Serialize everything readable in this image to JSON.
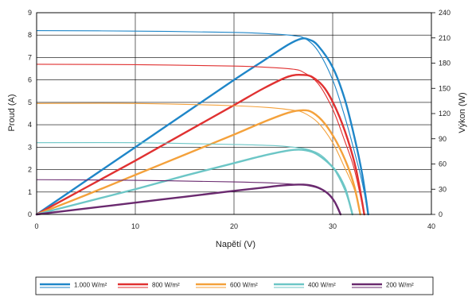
{
  "chart_data": {
    "type": "line",
    "title": "",
    "xlabel": "Napětí (V)",
    "ylabel_left": "Proud (A)",
    "ylabel_right": "Výkon (W)",
    "xlim": [
      0,
      40
    ],
    "ylim_left": [
      0,
      9
    ],
    "ylim_right": [
      0,
      240
    ],
    "x_ticks": [
      0,
      10,
      20,
      30,
      40
    ],
    "y_ticks_left": [
      0,
      1,
      2,
      3,
      4,
      5,
      6,
      7,
      8,
      9
    ],
    "y_ticks_right": [
      0,
      30,
      60,
      90,
      120,
      150,
      180,
      210,
      240
    ],
    "grid": true,
    "legend_position": "bottom",
    "series": [
      {
        "name": "1.000 W/m²",
        "color": "#1f86c8",
        "current_curve": [
          [
            0,
            8.2
          ],
          [
            10,
            8.18
          ],
          [
            20,
            8.12
          ],
          [
            24,
            8.05
          ],
          [
            26,
            7.98
          ],
          [
            27.2,
            7.85
          ],
          [
            28.5,
            7.3
          ],
          [
            30,
            6.0
          ],
          [
            31.2,
            4.4
          ],
          [
            32.2,
            2.8
          ],
          [
            33,
            1.4
          ],
          [
            33.6,
            0
          ]
        ],
        "power_curve": [
          [
            0,
            0
          ],
          [
            5,
            40
          ],
          [
            10,
            80
          ],
          [
            15,
            120
          ],
          [
            20,
            160
          ],
          [
            23,
            183
          ],
          [
            25.5,
            202
          ],
          [
            26.8,
            209
          ],
          [
            27.6,
            208
          ],
          [
            28.5,
            201
          ],
          [
            30,
            175
          ],
          [
            31.2,
            138
          ],
          [
            32.2,
            92
          ],
          [
            33,
            47
          ],
          [
            33.6,
            0
          ]
        ]
      },
      {
        "name": "800 W/m²",
        "color": "#e03131",
        "current_curve": [
          [
            0,
            6.7
          ],
          [
            10,
            6.68
          ],
          [
            20,
            6.62
          ],
          [
            24,
            6.55
          ],
          [
            26,
            6.48
          ],
          [
            27,
            6.35
          ],
          [
            28.5,
            5.85
          ],
          [
            30,
            4.7
          ],
          [
            31.2,
            3.3
          ],
          [
            32.2,
            2.0
          ],
          [
            33.2,
            0
          ]
        ],
        "power_curve": [
          [
            0,
            0
          ],
          [
            5,
            32
          ],
          [
            10,
            64
          ],
          [
            15,
            97
          ],
          [
            20,
            130
          ],
          [
            23,
            150
          ],
          [
            25.5,
            164
          ],
          [
            27,
            166
          ],
          [
            28,
            163
          ],
          [
            29.2,
            150
          ],
          [
            30.4,
            124
          ],
          [
            31.5,
            90
          ],
          [
            32.4,
            52
          ],
          [
            33.2,
            0
          ]
        ]
      },
      {
        "name": "600 W/m²",
        "color": "#f4a13b",
        "current_curve": [
          [
            0,
            4.95
          ],
          [
            10,
            4.95
          ],
          [
            20,
            4.85
          ],
          [
            24,
            4.75
          ],
          [
            26,
            4.65
          ],
          [
            27,
            4.55
          ],
          [
            28.5,
            4.1
          ],
          [
            30,
            3.2
          ],
          [
            31.2,
            2.1
          ],
          [
            32.2,
            1.1
          ],
          [
            32.8,
            0
          ]
        ],
        "power_curve": [
          [
            0,
            0
          ],
          [
            5,
            23
          ],
          [
            10,
            47
          ],
          [
            15,
            71
          ],
          [
            20,
            95
          ],
          [
            23,
            110
          ],
          [
            25.5,
            121
          ],
          [
            27,
            124
          ],
          [
            28,
            121
          ],
          [
            29.2,
            108
          ],
          [
            30.4,
            86
          ],
          [
            31.5,
            58
          ],
          [
            32.2,
            33
          ],
          [
            32.8,
            0
          ]
        ]
      },
      {
        "name": "400 W/m²",
        "color": "#6cc6c6",
        "current_curve": [
          [
            0,
            3.2
          ],
          [
            10,
            3.2
          ],
          [
            20,
            3.12
          ],
          [
            24,
            3.07
          ],
          [
            26,
            3.0
          ],
          [
            27.5,
            2.9
          ],
          [
            28.8,
            2.65
          ],
          [
            30,
            2.1
          ],
          [
            31.2,
            1.1
          ],
          [
            32,
            0
          ]
        ],
        "power_curve": [
          [
            0,
            0
          ],
          [
            5,
            15
          ],
          [
            10,
            30
          ],
          [
            15,
            46
          ],
          [
            20,
            61
          ],
          [
            23,
            70
          ],
          [
            25.5,
            76
          ],
          [
            26.8,
            77
          ],
          [
            28,
            74
          ],
          [
            29.2,
            65
          ],
          [
            30.3,
            52
          ],
          [
            31.2,
            33
          ],
          [
            31.6,
            18
          ],
          [
            32,
            0
          ]
        ]
      },
      {
        "name": "200 W/m²",
        "color": "#6a2a6f",
        "current_curve": [
          [
            0,
            1.55
          ],
          [
            10,
            1.52
          ],
          [
            20,
            1.45
          ],
          [
            24,
            1.4
          ],
          [
            26,
            1.35
          ],
          [
            27.5,
            1.28
          ],
          [
            28.8,
            1.12
          ],
          [
            29.8,
            0.8
          ],
          [
            30.5,
            0.35
          ],
          [
            30.8,
            0
          ]
        ],
        "power_curve": [
          [
            0,
            0
          ],
          [
            5,
            7
          ],
          [
            10,
            14
          ],
          [
            15,
            21
          ],
          [
            20,
            28
          ],
          [
            23,
            32
          ],
          [
            25,
            34.5
          ],
          [
            26.5,
            35.5
          ],
          [
            27.5,
            35
          ],
          [
            28.5,
            32
          ],
          [
            29.5,
            25
          ],
          [
            30.2,
            15
          ],
          [
            30.8,
            0
          ]
        ]
      }
    ]
  },
  "legend": {
    "items": [
      "1.000 W/m²",
      "800 W/m²",
      "600 W/m²",
      "400 W/m²",
      "200 W/m²"
    ]
  }
}
